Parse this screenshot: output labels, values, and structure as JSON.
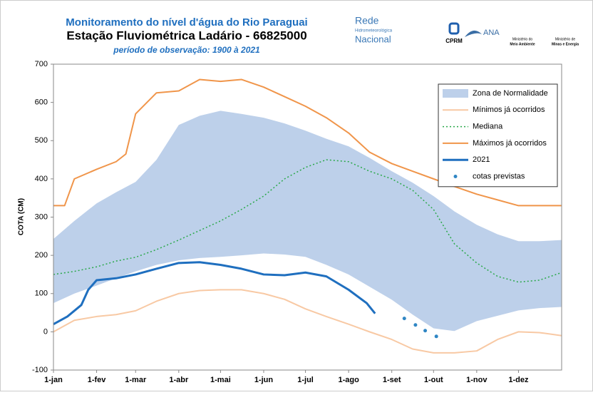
{
  "chart_data": {
    "type": "line",
    "title": "Monitoramento do nível d'água do Rio Paraguai",
    "subtitle": "Estação Fluviométrica Ladário - 66825000",
    "period": "período de observação: 1900 à 2021",
    "logos": [
      "Rede",
      "Hidrometeorológica",
      "Nacional",
      "CPRM",
      "ANA",
      "Ministério do",
      "Meio Ambiente",
      "Ministério de",
      "Minas e Energia"
    ],
    "y_label": "COTA (CM)",
    "xlim": [
      0,
      365
    ],
    "xticks": [
      {
        "value": 0,
        "label": "1-jan"
      },
      {
        "value": 31,
        "label": "1-fev"
      },
      {
        "value": 59,
        "label": "1-mar"
      },
      {
        "value": 90,
        "label": "1-abr"
      },
      {
        "value": 120,
        "label": "1-mai"
      },
      {
        "value": 151,
        "label": "1-jun"
      },
      {
        "value": 181,
        "label": "1-jul"
      },
      {
        "value": 212,
        "label": "1-ago"
      },
      {
        "value": 243,
        "label": "1-set"
      },
      {
        "value": 273,
        "label": "1-out"
      },
      {
        "value": 304,
        "label": "1-nov"
      },
      {
        "value": 334,
        "label": "1-dez"
      }
    ],
    "ylim": [
      -100,
      700
    ],
    "yticks": [
      -100,
      0,
      100,
      200,
      300,
      400,
      500,
      600,
      700
    ],
    "legend": "top-right",
    "series": [
      {
        "name": "Zona de Normalidade",
        "style": "band",
        "color": "#bdd0ea",
        "x": [
          0,
          15,
          31,
          45,
          59,
          74,
          90,
          105,
          120,
          135,
          151,
          166,
          181,
          196,
          212,
          227,
          243,
          258,
          273,
          288,
          304,
          319,
          334,
          349,
          365
        ],
        "values": [
          243,
          290,
          336,
          365,
          392,
          450,
          541,
          565,
          578,
          570,
          560,
          545,
          526,
          505,
          485,
          455,
          420,
          390,
          355,
          315,
          280,
          255,
          237,
          237,
          240
        ],
        "lower": [
          75,
          100,
          121,
          140,
          158,
          175,
          187,
          193,
          196,
          200,
          205,
          202,
          196,
          175,
          150,
          118,
          84,
          45,
          9,
          2,
          28,
          42,
          56,
          62,
          65
        ]
      },
      {
        "name": "Mínimos já ocorridos",
        "style": "line",
        "color": "#f8c9a4",
        "width": 2,
        "x": [
          0,
          15,
          31,
          45,
          59,
          74,
          90,
          105,
          120,
          135,
          151,
          166,
          181,
          196,
          212,
          227,
          243,
          258,
          273,
          288,
          304,
          319,
          334,
          349,
          365
        ],
        "values": [
          0,
          30,
          40,
          45,
          55,
          80,
          100,
          108,
          110,
          110,
          100,
          85,
          60,
          40,
          20,
          0,
          -20,
          -45,
          -55,
          -55,
          -50,
          -20,
          0,
          -2,
          -10
        ]
      },
      {
        "name": "Mediana",
        "style": "line",
        "dash": "2 3",
        "color": "#2aa84a",
        "width": 1.5,
        "x": [
          0,
          15,
          31,
          45,
          59,
          74,
          90,
          105,
          120,
          135,
          151,
          166,
          181,
          196,
          212,
          227,
          243,
          258,
          273,
          288,
          304,
          319,
          334,
          349,
          365
        ],
        "values": [
          150,
          158,
          170,
          185,
          195,
          215,
          240,
          265,
          290,
          320,
          355,
          400,
          430,
          450,
          445,
          420,
          400,
          370,
          320,
          230,
          180,
          145,
          130,
          135,
          155
        ]
      },
      {
        "name": "Máximos já ocorridos",
        "style": "line",
        "color": "#f0954a",
        "width": 2,
        "x": [
          0,
          8,
          15,
          31,
          45,
          52,
          59,
          74,
          90,
          105,
          120,
          135,
          151,
          166,
          181,
          196,
          212,
          227,
          243,
          258,
          273,
          288,
          304,
          319,
          334,
          349,
          365
        ],
        "values": [
          330,
          330,
          400,
          425,
          445,
          465,
          570,
          625,
          630,
          660,
          655,
          660,
          640,
          615,
          590,
          560,
          520,
          470,
          440,
          420,
          400,
          380,
          360,
          345,
          330,
          330,
          330
        ]
      },
      {
        "name": "2021",
        "style": "line",
        "color": "#1f6fbf",
        "width": 3,
        "x": [
          0,
          10,
          20,
          25,
          31,
          45,
          59,
          74,
          90,
          105,
          120,
          135,
          151,
          166,
          181,
          196,
          212,
          225,
          231
        ],
        "values": [
          20,
          40,
          70,
          110,
          135,
          140,
          150,
          165,
          180,
          182,
          175,
          165,
          150,
          148,
          155,
          145,
          110,
          75,
          48
        ]
      },
      {
        "name": "cotas previstas",
        "style": "points",
        "color": "#2f86c4",
        "x": [
          252,
          260,
          267,
          275
        ],
        "values": [
          35,
          18,
          3,
          -12
        ]
      }
    ]
  }
}
